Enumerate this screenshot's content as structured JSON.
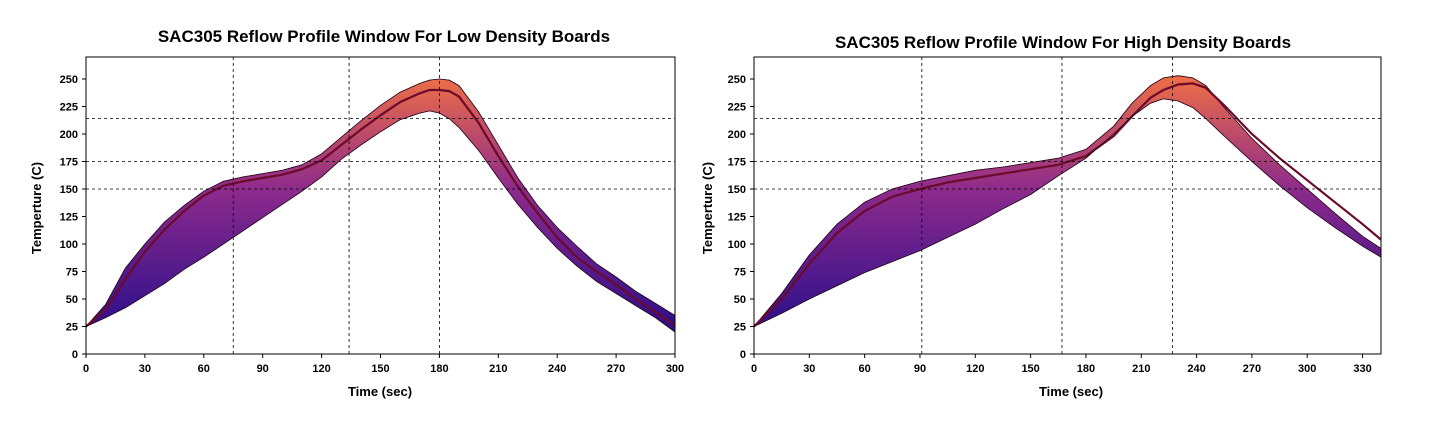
{
  "chart_data": [
    {
      "type": "area",
      "title": "SAC305 Reflow Profile Window For Low Density Boards",
      "xlabel": "Time (sec)",
      "ylabel": "Temperture (C)",
      "xlim": [
        0,
        300
      ],
      "ylim": [
        0,
        270
      ],
      "xticks": [
        0,
        30,
        60,
        90,
        120,
        150,
        180,
        210,
        240,
        270,
        300
      ],
      "yticks": [
        0,
        25,
        50,
        75,
        100,
        125,
        150,
        175,
        200,
        225,
        250
      ],
      "vlines": [
        75,
        134,
        180
      ],
      "hlines": [
        150,
        175,
        214
      ],
      "colors": {
        "low": "#1a0a8a",
        "mid": "#8c2a8c",
        "high": "#ff7a3a",
        "line": "#6b0a2a"
      },
      "series": [
        {
          "x": [
            0,
            10,
            20,
            30,
            40,
            50,
            60,
            70,
            80,
            90,
            100,
            110,
            120,
            130,
            140,
            150,
            160,
            170,
            175,
            180,
            185,
            190,
            200,
            210,
            220,
            230,
            240,
            250,
            260,
            270,
            280,
            290,
            300
          ],
          "values": [
            25,
            45,
            78,
            100,
            120,
            135,
            148,
            157,
            161,
            164,
            167,
            172,
            182,
            197,
            212,
            226,
            238,
            246,
            249,
            250,
            249,
            244,
            220,
            190,
            160,
            135,
            115,
            98,
            82,
            70,
            57,
            46,
            35
          ]
        },
        {
          "x": [
            0,
            10,
            20,
            30,
            40,
            50,
            60,
            70,
            80,
            90,
            100,
            110,
            120,
            130,
            140,
            150,
            160,
            170,
            175,
            180,
            185,
            190,
            200,
            210,
            220,
            230,
            240,
            250,
            260,
            270,
            280,
            290,
            300
          ],
          "values": [
            25,
            40,
            68,
            93,
            113,
            130,
            144,
            153,
            157,
            160,
            163,
            168,
            176,
            190,
            204,
            217,
            229,
            237,
            240,
            240,
            239,
            234,
            210,
            180,
            152,
            128,
            106,
            88,
            75,
            63,
            50,
            38,
            26
          ]
        },
        {
          "x": [
            0,
            10,
            20,
            30,
            40,
            50,
            60,
            70,
            80,
            90,
            100,
            110,
            120,
            130,
            140,
            150,
            160,
            170,
            175,
            180,
            185,
            190,
            200,
            210,
            220,
            230,
            240,
            250,
            260,
            270,
            280,
            290,
            300
          ],
          "values": [
            25,
            33,
            42,
            53,
            64,
            77,
            88,
            100,
            112,
            124,
            136,
            148,
            161,
            177,
            190,
            202,
            213,
            219,
            221,
            219,
            214,
            206,
            185,
            160,
            136,
            115,
            96,
            80,
            66,
            55,
            44,
            33,
            20
          ]
        }
      ]
    },
    {
      "type": "area",
      "title": "SAC305 Reflow Profile Window For High Density Boards",
      "xlabel": "Time (sec)",
      "ylabel": "Temperture (C)",
      "xlim": [
        0,
        340
      ],
      "ylim": [
        0,
        270
      ],
      "xticks": [
        0,
        30,
        60,
        90,
        120,
        150,
        180,
        210,
        240,
        270,
        300,
        330
      ],
      "yticks": [
        0,
        25,
        50,
        75,
        100,
        125,
        150,
        175,
        200,
        225,
        250
      ],
      "vlines": [
        91,
        167,
        227
      ],
      "hlines": [
        150,
        175,
        214
      ],
      "colors": {
        "low": "#1a0a8a",
        "mid": "#8c2a8c",
        "high": "#ff7a3a",
        "line": "#6b0a2a"
      },
      "series": [
        {
          "x": [
            0,
            15,
            30,
            45,
            60,
            75,
            90,
            105,
            120,
            135,
            150,
            165,
            180,
            195,
            205,
            215,
            222,
            230,
            238,
            245,
            255,
            270,
            285,
            300,
            315,
            330,
            340
          ],
          "values": [
            25,
            55,
            90,
            118,
            138,
            150,
            157,
            162,
            167,
            170,
            174,
            178,
            186,
            207,
            228,
            244,
            251,
            253,
            251,
            244,
            224,
            196,
            172,
            150,
            128,
            107,
            96
          ]
        },
        {
          "x": [
            0,
            15,
            30,
            45,
            60,
            75,
            90,
            105,
            120,
            135,
            150,
            165,
            180,
            195,
            205,
            215,
            222,
            230,
            238,
            245,
            255,
            270,
            285,
            300,
            315,
            330,
            340
          ],
          "values": [
            25,
            50,
            82,
            110,
            130,
            143,
            150,
            156,
            160,
            164,
            168,
            172,
            180,
            198,
            216,
            233,
            240,
            245,
            246,
            242,
            226,
            200,
            178,
            158,
            138,
            118,
            104
          ]
        },
        {
          "x": [
            0,
            15,
            30,
            45,
            60,
            75,
            90,
            105,
            120,
            135,
            150,
            165,
            180,
            195,
            205,
            215,
            222,
            230,
            238,
            245,
            255,
            270,
            285,
            300,
            315,
            330,
            340
          ],
          "values": [
            25,
            37,
            50,
            62,
            74,
            84,
            94,
            106,
            118,
            132,
            145,
            162,
            178,
            200,
            216,
            228,
            232,
            230,
            224,
            214,
            198,
            175,
            153,
            133,
            115,
            98,
            88
          ]
        }
      ]
    }
  ]
}
